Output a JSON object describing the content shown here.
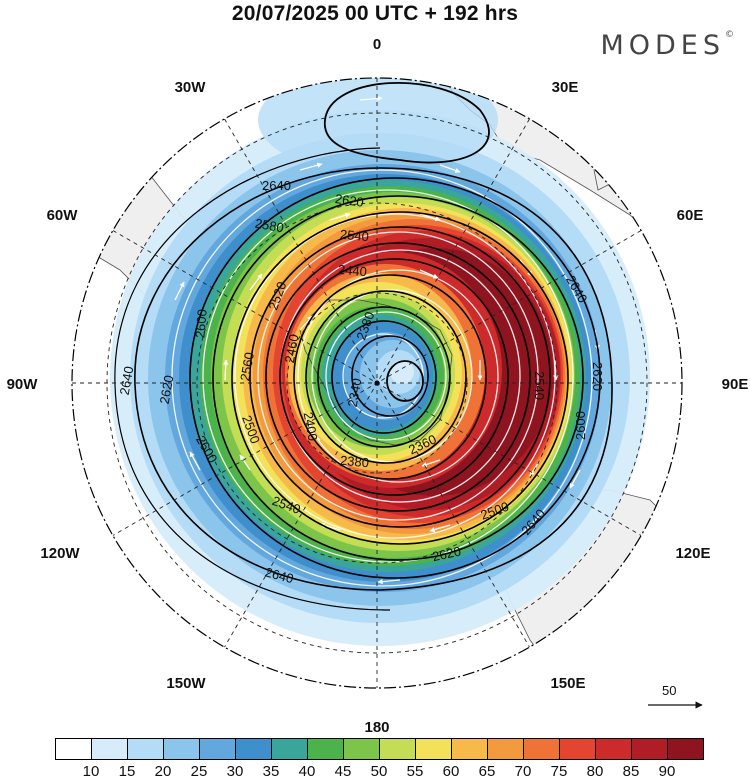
{
  "title": "20/07/2025  00 UTC  + 192 hrs",
  "brand": "MODES",
  "brand_mark": "©",
  "longitude_labels": [
    {
      "text": "0",
      "lon": 0
    },
    {
      "text": "30E",
      "lon": 30
    },
    {
      "text": "60E",
      "lon": 60
    },
    {
      "text": "90E",
      "lon": 90
    },
    {
      "text": "120E",
      "lon": 120
    },
    {
      "text": "150E",
      "lon": 150
    },
    {
      "text": "180",
      "lon": 180
    },
    {
      "text": "150W",
      "lon": -150
    },
    {
      "text": "120W",
      "lon": -120
    },
    {
      "text": "90W",
      "lon": -90
    },
    {
      "text": "60W",
      "lon": -60
    },
    {
      "text": "30W",
      "lon": -30
    }
  ],
  "contour_labels": [
    "2640",
    "2620",
    "2600",
    "2580",
    "2560",
    "2540",
    "2520",
    "2500",
    "2480",
    "2460",
    "2440",
    "2420",
    "2400",
    "2380",
    "2360",
    "2340"
  ],
  "reference_vector": "50",
  "colorbar": {
    "colors": [
      "#ffffff",
      "#d6ecfa",
      "#b4dcf6",
      "#8cc5ec",
      "#62a8df",
      "#3f8fcc",
      "#3aa59a",
      "#4cb34c",
      "#7dc44a",
      "#c3dd55",
      "#f3e15a",
      "#f7b94a",
      "#f49a3e",
      "#ef7237",
      "#e44530",
      "#cc2a2b",
      "#b01d26",
      "#8e1520"
    ],
    "tick_labels": [
      "10",
      "15",
      "20",
      "25",
      "30",
      "35",
      "40",
      "45",
      "50",
      "55",
      "60",
      "65",
      "70",
      "75",
      "80",
      "85",
      "90"
    ]
  }
}
